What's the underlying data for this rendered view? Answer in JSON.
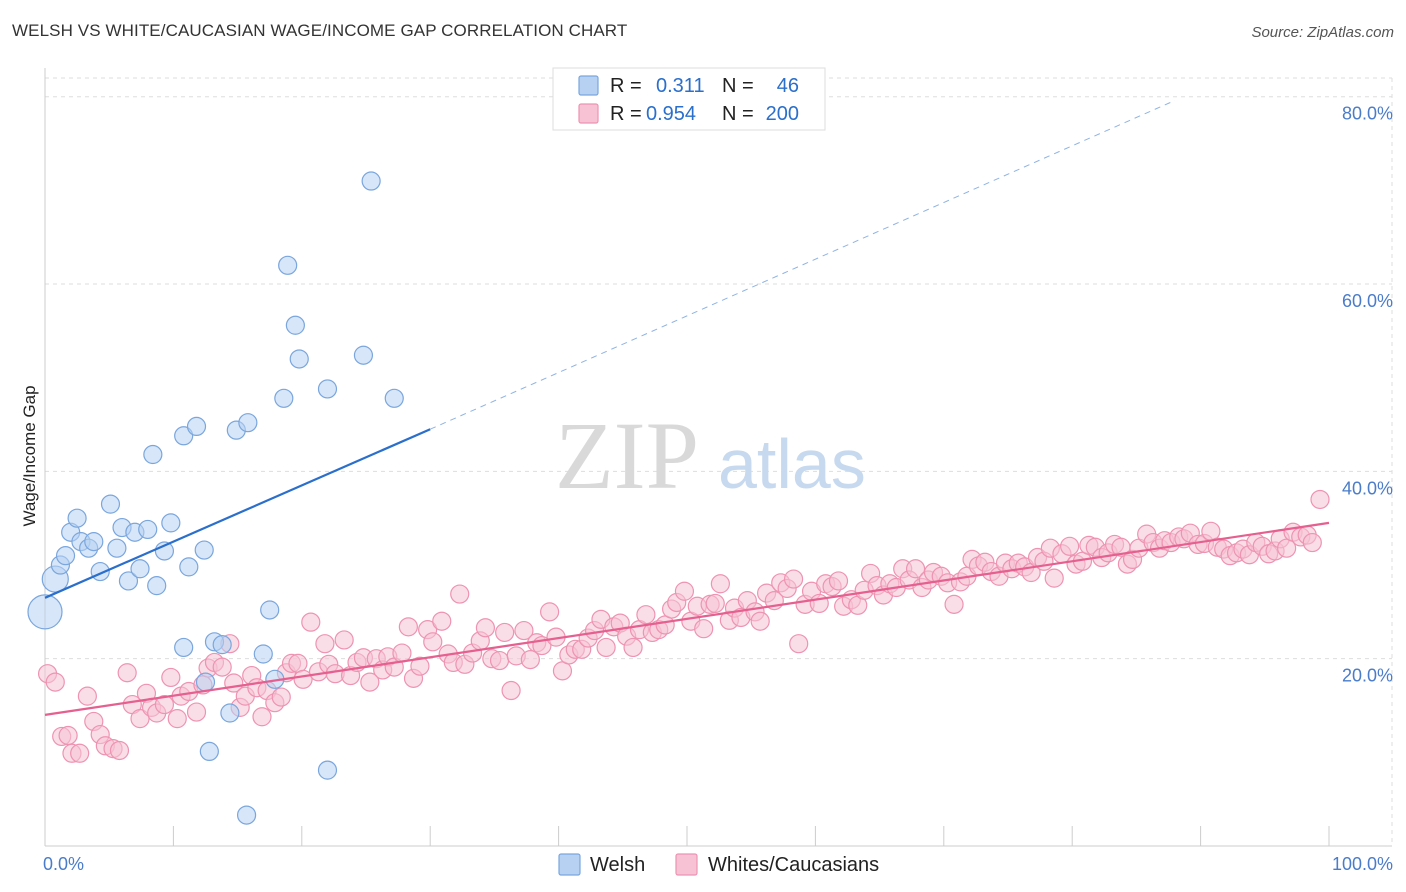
{
  "title": "WELSH VS WHITE/CAUCASIAN WAGE/INCOME GAP CORRELATION CHART",
  "source": "Source: ZipAtlas.com",
  "watermark": {
    "zip": "ZIP",
    "atlas": "atlas"
  },
  "legend_stats": {
    "welsh": {
      "r_label": "R =",
      "r_value": "0.311",
      "n_label": "N =",
      "n_value": "46"
    },
    "whites": {
      "r_label": "R =",
      "r_value": "0.954",
      "n_label": "N =",
      "n_value": "200"
    }
  },
  "colors": {
    "welsh_fill": "#b7d1f2",
    "welsh_stroke": "#7aa6dd",
    "welsh_line": "#2a6fcb",
    "whites_fill": "#f6c2d4",
    "whites_stroke": "#ee93b2",
    "whites_line": "#e55f8f",
    "grid": "#dddddd",
    "axis_text": "#4a7cc9"
  },
  "chart_data": {
    "type": "scatter",
    "ylabel": "Wage/Income Gap",
    "xlabel": "",
    "x_tick_labels": [
      "0.0%",
      "100.0%"
    ],
    "y_tick_labels": [
      "20.0%",
      "40.0%",
      "60.0%",
      "80.0%"
    ],
    "y_ticks": [
      20,
      40,
      60,
      80
    ],
    "xlim": [
      0,
      100
    ],
    "ylim": [
      0,
      82
    ],
    "grid": true,
    "legend_position": "top-center",
    "series": [
      {
        "name": "Welsh",
        "points": [
          [
            0.0,
            25.0
          ],
          [
            0.8,
            28.5
          ],
          [
            1.2,
            30.0
          ],
          [
            1.6,
            31.0
          ],
          [
            2.0,
            33.5
          ],
          [
            2.5,
            35.0
          ],
          [
            2.8,
            32.5
          ],
          [
            3.4,
            31.8
          ],
          [
            3.8,
            32.5
          ],
          [
            4.3,
            29.3
          ],
          [
            5.1,
            36.5
          ],
          [
            5.6,
            31.8
          ],
          [
            6.0,
            34.0
          ],
          [
            6.5,
            28.3
          ],
          [
            7.0,
            33.5
          ],
          [
            7.4,
            29.6
          ],
          [
            8.0,
            33.8
          ],
          [
            8.4,
            41.8
          ],
          [
            8.7,
            27.8
          ],
          [
            9.3,
            31.5
          ],
          [
            9.8,
            34.5
          ],
          [
            10.8,
            21.2
          ],
          [
            10.8,
            43.8
          ],
          [
            11.2,
            29.8
          ],
          [
            11.8,
            44.8
          ],
          [
            12.4,
            31.6
          ],
          [
            12.5,
            17.5
          ],
          [
            12.8,
            10.1
          ],
          [
            13.2,
            21.8
          ],
          [
            13.8,
            21.5
          ],
          [
            14.4,
            14.2
          ],
          [
            14.9,
            44.4
          ],
          [
            15.8,
            45.2
          ],
          [
            15.7,
            3.3
          ],
          [
            17.0,
            20.5
          ],
          [
            17.5,
            25.2
          ],
          [
            17.9,
            17.8
          ],
          [
            18.6,
            47.8
          ],
          [
            18.9,
            62.0
          ],
          [
            19.5,
            55.6
          ],
          [
            19.8,
            52.0
          ],
          [
            22.0,
            48.8
          ],
          [
            22.0,
            8.1
          ],
          [
            24.8,
            52.4
          ],
          [
            25.4,
            71.0
          ],
          [
            27.2,
            47.8
          ]
        ],
        "sizes": {
          "0": 34,
          "1": 26
        }
      },
      {
        "name": "Whites/Caucasians",
        "points": [
          [
            0.2,
            18.4
          ],
          [
            0.8,
            17.5
          ],
          [
            1.3,
            11.7
          ],
          [
            1.8,
            11.8
          ],
          [
            2.1,
            9.9
          ],
          [
            2.7,
            9.9
          ],
          [
            3.3,
            16.0
          ],
          [
            3.8,
            13.3
          ],
          [
            4.3,
            11.9
          ],
          [
            4.7,
            10.7
          ],
          [
            5.3,
            10.4
          ],
          [
            5.8,
            10.2
          ],
          [
            6.4,
            18.5
          ],
          [
            6.8,
            15.1
          ],
          [
            7.4,
            13.6
          ],
          [
            7.9,
            16.3
          ],
          [
            8.3,
            14.8
          ],
          [
            8.7,
            14.2
          ],
          [
            9.3,
            15.1
          ],
          [
            9.8,
            18.0
          ],
          [
            10.3,
            13.6
          ],
          [
            10.6,
            16.0
          ],
          [
            11.2,
            16.5
          ],
          [
            11.8,
            14.3
          ],
          [
            12.3,
            17.2
          ],
          [
            12.7,
            19.0
          ],
          [
            13.2,
            19.6
          ],
          [
            13.8,
            19.1
          ],
          [
            14.4,
            21.6
          ],
          [
            14.7,
            17.4
          ],
          [
            15.2,
            14.8
          ],
          [
            15.6,
            16.0
          ],
          [
            16.1,
            18.2
          ],
          [
            16.5,
            16.9
          ],
          [
            16.9,
            13.8
          ],
          [
            17.3,
            16.6
          ],
          [
            17.9,
            15.3
          ],
          [
            18.4,
            15.9
          ],
          [
            18.8,
            18.5
          ],
          [
            19.2,
            19.5
          ],
          [
            19.7,
            19.5
          ],
          [
            20.1,
            17.8
          ],
          [
            20.7,
            23.9
          ],
          [
            21.3,
            18.6
          ],
          [
            21.8,
            21.6
          ],
          [
            22.1,
            19.4
          ],
          [
            22.6,
            18.4
          ],
          [
            23.3,
            22.0
          ],
          [
            23.8,
            18.2
          ],
          [
            24.3,
            19.6
          ],
          [
            24.8,
            20.1
          ],
          [
            25.3,
            17.5
          ],
          [
            25.8,
            20.0
          ],
          [
            26.3,
            18.8
          ],
          [
            26.7,
            20.2
          ],
          [
            27.2,
            19.1
          ],
          [
            27.8,
            20.6
          ],
          [
            28.3,
            23.4
          ],
          [
            28.7,
            17.9
          ],
          [
            29.2,
            19.2
          ],
          [
            29.8,
            23.1
          ],
          [
            30.2,
            21.8
          ],
          [
            30.9,
            24.0
          ],
          [
            31.4,
            20.5
          ],
          [
            31.8,
            19.6
          ],
          [
            32.3,
            26.9
          ],
          [
            32.7,
            19.4
          ],
          [
            33.3,
            20.6
          ],
          [
            33.9,
            21.9
          ],
          [
            34.3,
            23.3
          ],
          [
            34.8,
            20.0
          ],
          [
            35.4,
            19.8
          ],
          [
            35.8,
            22.8
          ],
          [
            36.3,
            16.6
          ],
          [
            36.7,
            20.3
          ],
          [
            37.3,
            23.0
          ],
          [
            37.8,
            19.9
          ],
          [
            38.3,
            21.7
          ],
          [
            38.7,
            21.4
          ],
          [
            39.3,
            25.0
          ],
          [
            39.8,
            22.3
          ],
          [
            40.3,
            18.7
          ],
          [
            40.8,
            20.4
          ],
          [
            41.3,
            21.0
          ],
          [
            41.8,
            21.0
          ],
          [
            42.3,
            22.2
          ],
          [
            42.8,
            23.0
          ],
          [
            43.3,
            24.2
          ],
          [
            43.7,
            21.2
          ],
          [
            44.3,
            23.4
          ],
          [
            44.8,
            23.8
          ],
          [
            45.3,
            22.4
          ],
          [
            45.8,
            21.2
          ],
          [
            46.3,
            23.1
          ],
          [
            46.8,
            24.7
          ],
          [
            47.3,
            22.8
          ],
          [
            47.8,
            23.1
          ],
          [
            48.3,
            23.6
          ],
          [
            48.8,
            25.3
          ],
          [
            49.2,
            26.0
          ],
          [
            49.8,
            27.2
          ],
          [
            50.3,
            24.0
          ],
          [
            50.8,
            25.6
          ],
          [
            51.3,
            23.2
          ],
          [
            51.8,
            25.8
          ],
          [
            52.2,
            25.9
          ],
          [
            52.6,
            28.0
          ],
          [
            53.3,
            24.1
          ],
          [
            53.7,
            25.4
          ],
          [
            54.2,
            24.4
          ],
          [
            54.7,
            26.2
          ],
          [
            55.3,
            25.0
          ],
          [
            55.7,
            24.0
          ],
          [
            56.2,
            27.0
          ],
          [
            56.8,
            26.2
          ],
          [
            57.3,
            28.1
          ],
          [
            57.8,
            27.5
          ],
          [
            58.3,
            28.5
          ],
          [
            58.7,
            21.6
          ],
          [
            59.2,
            25.8
          ],
          [
            59.7,
            27.2
          ],
          [
            60.3,
            25.9
          ],
          [
            60.8,
            28.0
          ],
          [
            61.3,
            27.7
          ],
          [
            61.8,
            28.3
          ],
          [
            62.2,
            25.6
          ],
          [
            62.8,
            26.3
          ],
          [
            63.3,
            25.7
          ],
          [
            63.8,
            27.3
          ],
          [
            64.3,
            29.1
          ],
          [
            64.8,
            27.8
          ],
          [
            65.3,
            26.8
          ],
          [
            65.8,
            28.0
          ],
          [
            66.3,
            27.6
          ],
          [
            66.8,
            29.6
          ],
          [
            67.3,
            28.4
          ],
          [
            67.8,
            29.6
          ],
          [
            68.3,
            27.6
          ],
          [
            68.8,
            28.4
          ],
          [
            69.2,
            29.2
          ],
          [
            69.8,
            28.8
          ],
          [
            70.3,
            28.1
          ],
          [
            70.8,
            25.8
          ],
          [
            71.3,
            28.2
          ],
          [
            71.8,
            28.8
          ],
          [
            72.2,
            30.6
          ],
          [
            72.7,
            29.9
          ],
          [
            73.2,
            30.3
          ],
          [
            73.7,
            29.3
          ],
          [
            74.3,
            28.8
          ],
          [
            74.8,
            30.2
          ],
          [
            75.3,
            29.6
          ],
          [
            75.8,
            30.2
          ],
          [
            76.3,
            29.8
          ],
          [
            76.8,
            29.2
          ],
          [
            77.3,
            30.8
          ],
          [
            77.8,
            30.4
          ],
          [
            78.3,
            31.8
          ],
          [
            78.6,
            28.6
          ],
          [
            79.2,
            31.2
          ],
          [
            79.8,
            32.0
          ],
          [
            80.3,
            30.1
          ],
          [
            80.8,
            30.4
          ],
          [
            81.3,
            32.1
          ],
          [
            81.8,
            31.9
          ],
          [
            82.3,
            30.8
          ],
          [
            82.8,
            31.3
          ],
          [
            83.3,
            32.2
          ],
          [
            83.8,
            31.9
          ],
          [
            84.3,
            30.1
          ],
          [
            84.7,
            30.6
          ],
          [
            85.2,
            31.8
          ],
          [
            85.8,
            33.3
          ],
          [
            86.3,
            32.4
          ],
          [
            86.8,
            31.8
          ],
          [
            87.2,
            32.6
          ],
          [
            87.7,
            32.4
          ],
          [
            88.3,
            33.0
          ],
          [
            88.7,
            32.8
          ],
          [
            89.2,
            33.4
          ],
          [
            89.8,
            32.2
          ],
          [
            90.3,
            32.3
          ],
          [
            90.8,
            33.6
          ],
          [
            91.3,
            31.9
          ],
          [
            91.8,
            31.7
          ],
          [
            92.3,
            31.0
          ],
          [
            92.8,
            31.3
          ],
          [
            93.3,
            31.7
          ],
          [
            93.8,
            31.1
          ],
          [
            94.3,
            32.4
          ],
          [
            94.8,
            32.0
          ],
          [
            95.3,
            31.2
          ],
          [
            95.8,
            31.5
          ],
          [
            96.2,
            32.8
          ],
          [
            96.7,
            31.8
          ],
          [
            97.2,
            33.5
          ],
          [
            97.8,
            33.0
          ],
          [
            98.3,
            33.2
          ],
          [
            98.7,
            32.4
          ],
          [
            99.3,
            37.0
          ]
        ],
        "sizes": {}
      }
    ],
    "trend_lines": [
      {
        "series": "Welsh",
        "x_start": 0,
        "x_end": 30,
        "y_start": 26.5,
        "y_end": 44.5,
        "dashed_extension_to_x": 88,
        "dashed_extension_y": 79.6
      },
      {
        "series": "Whites/Caucasians",
        "x_start": 0,
        "x_end": 100,
        "y_start": 14.0,
        "y_end": 34.5
      }
    ]
  }
}
